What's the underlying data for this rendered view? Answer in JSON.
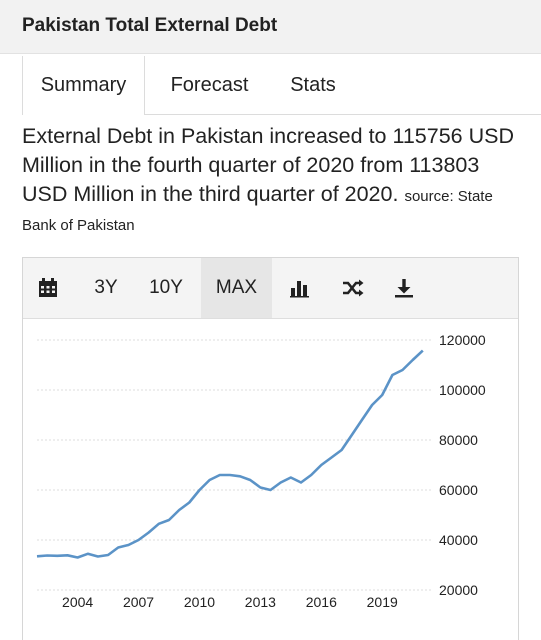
{
  "header": {
    "title": "Pakistan Total External Debt"
  },
  "tabs": [
    {
      "label": "Summary",
      "active": true
    },
    {
      "label": "Forecast",
      "active": false
    },
    {
      "label": "Stats",
      "active": false
    }
  ],
  "description": {
    "text": "External Debt in Pakistan increased to 115756 USD Million in the fourth quarter of 2020 from 113803 USD Million in the third quarter of 2020.",
    "source_prefix": "source: State",
    "source_suffix": "Bank of Pakistan"
  },
  "toolbar": {
    "items": [
      {
        "type": "icon",
        "icon": "calendar-icon"
      },
      {
        "type": "text",
        "label": "3Y"
      },
      {
        "type": "text",
        "label": "10Y"
      },
      {
        "type": "text",
        "label": "MAX",
        "active": true
      },
      {
        "type": "icon",
        "icon": "bar-chart-icon"
      },
      {
        "type": "icon",
        "icon": "shuffle-icon"
      },
      {
        "type": "icon",
        "icon": "download-icon"
      }
    ]
  },
  "colors": {
    "line": "#5b93c7",
    "grid": "#dddddd",
    "tick": "#222222"
  },
  "chart_data": {
    "type": "line",
    "title": "",
    "xlabel": "",
    "ylabel": "",
    "x_ticks": [
      "2004",
      "2007",
      "2010",
      "2013",
      "2016",
      "2019"
    ],
    "y_ticks": [
      20000,
      40000,
      60000,
      80000,
      100000,
      120000
    ],
    "xlim": [
      2002.0,
      2021.5
    ],
    "ylim": [
      20000,
      120000
    ],
    "grid": true,
    "series": [
      {
        "x": [
          2002.0,
          2002.5,
          2003.0,
          2003.5,
          2004.0,
          2004.5,
          2005.0,
          2005.5,
          2006.0,
          2006.5,
          2007.0,
          2007.5,
          2008.0,
          2008.5,
          2009.0,
          2009.5,
          2010.0,
          2010.5,
          2011.0,
          2011.5,
          2012.0,
          2012.5,
          2013.0,
          2013.5,
          2014.0,
          2014.5,
          2015.0,
          2015.5,
          2016.0,
          2016.5,
          2017.0,
          2017.5,
          2018.0,
          2018.5,
          2019.0,
          2019.5,
          2020.0,
          2020.5,
          2021.0
        ],
        "y": [
          33500,
          33800,
          33700,
          33900,
          33000,
          34500,
          33400,
          34000,
          37000,
          38000,
          40000,
          43000,
          46500,
          48000,
          52000,
          55000,
          60000,
          64000,
          66000,
          66000,
          65500,
          64000,
          61000,
          60000,
          63000,
          65000,
          63000,
          66000,
          70000,
          73000,
          76000,
          82000,
          88000,
          94000,
          98000,
          106000,
          108000,
          112000,
          115756
        ]
      }
    ]
  }
}
